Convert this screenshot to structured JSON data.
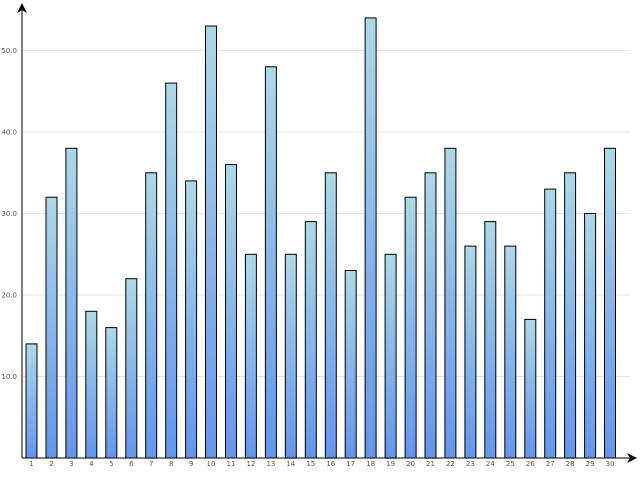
{
  "chart_data": {
    "type": "bar",
    "title": "",
    "xlabel": "",
    "ylabel": "",
    "ylim": [
      0,
      56
    ],
    "yticks": [
      10,
      20,
      30,
      40,
      50
    ],
    "grid": true,
    "legend": "none",
    "categories": [
      "1",
      "2",
      "3",
      "4",
      "5",
      "6",
      "7",
      "8",
      "9",
      "10",
      "11",
      "12",
      "13",
      "14",
      "15",
      "16",
      "17",
      "18",
      "19",
      "20",
      "21",
      "22",
      "23",
      "24",
      "25",
      "26",
      "27",
      "28",
      "29",
      "30"
    ],
    "values": [
      14,
      32,
      38,
      18,
      16,
      22,
      35,
      46,
      34,
      53,
      36,
      25,
      48,
      25,
      29,
      35,
      23,
      54,
      25,
      32,
      35,
      38,
      26,
      29,
      26,
      17,
      33,
      35,
      30,
      38
    ],
    "colors": {
      "bar_top": "#add8e6",
      "bar_bottom": "#6495ed",
      "bar_border": "#000000",
      "grid": "#e4e4e4",
      "axis": "#000000"
    }
  }
}
